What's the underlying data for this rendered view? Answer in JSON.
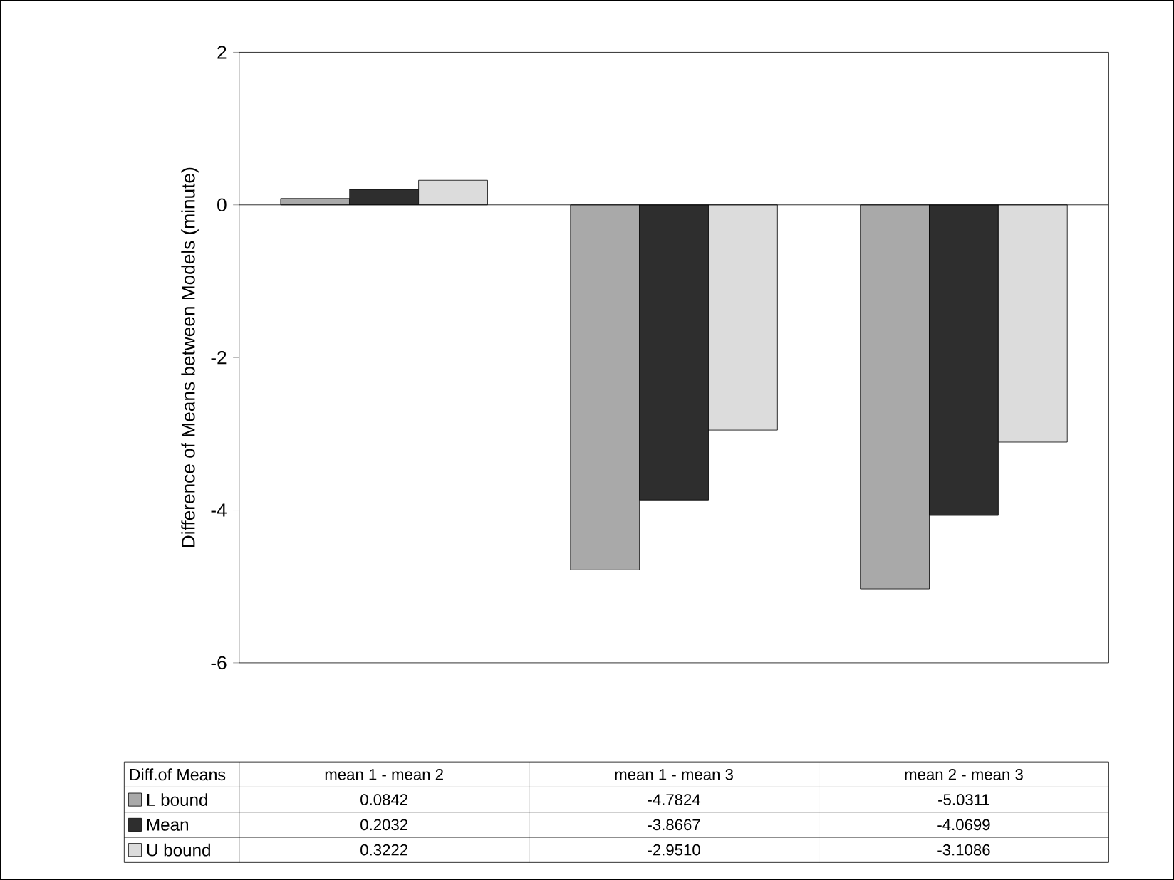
{
  "chart_data": {
    "type": "bar",
    "ylabel": "Difference of Means between Models (minute)",
    "legend_title": "Diff.of Means",
    "categories": [
      "mean 1 - mean 2",
      "mean 1 - mean 3",
      "mean 2 - mean 3"
    ],
    "series": [
      {
        "name": "L bound",
        "color": "#a9a9a9",
        "values": [
          0.0842,
          -4.7824,
          -5.0311
        ],
        "value_labels": [
          "0.0842",
          "-4.7824",
          "-5.0311"
        ]
      },
      {
        "name": "Mean",
        "color": "#2e2e2e",
        "values": [
          0.2032,
          -3.8667,
          -4.0699
        ],
        "value_labels": [
          "0.2032",
          "-3.8667",
          "-4.0699"
        ]
      },
      {
        "name": "U bound",
        "color": "#dcdcdc",
        "values": [
          0.3222,
          -2.951,
          -3.1086
        ],
        "value_labels": [
          "0.3222",
          "-2.9510",
          "-3.1086"
        ]
      }
    ],
    "ylim": [
      -6,
      2
    ],
    "yticks": [
      -6,
      -4,
      -2,
      0,
      2
    ],
    "legend": "bottom"
  }
}
